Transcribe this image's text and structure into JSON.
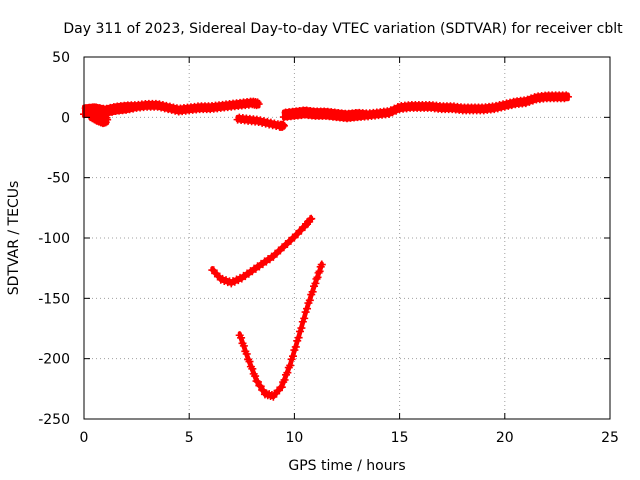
{
  "chart_data": {
    "type": "scatter",
    "title": "Day 311 of 2023, Sidereal Day-to-day VTEC variation (SDTVAR) for receiver cblt",
    "xlabel": "GPS time / hours",
    "ylabel": "SDTVAR / TECUs",
    "xlim": [
      0,
      25
    ],
    "ylim": [
      -250,
      50
    ],
    "xticks": [
      0,
      5,
      10,
      15,
      20,
      25
    ],
    "yticks": [
      50,
      0,
      -50,
      -100,
      -150,
      -200,
      -250
    ],
    "grid": true,
    "legend": "none",
    "color": "#ff0000",
    "marker": "plus",
    "series": [
      {
        "x": [
          0,
          0.5,
          1,
          1.5,
          2,
          2.5,
          3,
          3.5,
          4,
          4.5,
          5,
          5.5,
          6,
          6.5,
          7,
          7.5,
          8,
          8.3
        ],
        "y": [
          5,
          6,
          5,
          7,
          8,
          9,
          10,
          10,
          8,
          6,
          7,
          8,
          8,
          9,
          10,
          11,
          12,
          11
        ],
        "spread": [
          4,
          4,
          3,
          3,
          3,
          2,
          2,
          2,
          2,
          2,
          2,
          2,
          2,
          2,
          2,
          2,
          2,
          2
        ]
      },
      {
        "x": [
          0.3,
          0.6,
          0.9,
          1.1
        ],
        "y": [
          2,
          -1,
          -3,
          -2
        ],
        "spread": [
          3,
          3,
          3,
          3
        ]
      },
      {
        "x": [
          7.3,
          7.8,
          8.3,
          8.8,
          9.3,
          9.5
        ],
        "y": [
          -1,
          -2,
          -3,
          -5,
          -7,
          -7
        ],
        "spread": [
          1.5,
          1.5,
          1.5,
          1.5,
          1.5,
          1.5
        ]
      },
      {
        "x": [
          9.5,
          10,
          10.5,
          11,
          11.5,
          12,
          12.5,
          13,
          13.5,
          14,
          14.5,
          15,
          15.5,
          16,
          16.5,
          17,
          17.5,
          18,
          18.5,
          19,
          19.5,
          20,
          20.5,
          21,
          21.5,
          22,
          22.5,
          23
        ],
        "y": [
          2,
          3,
          4,
          3,
          3,
          2,
          1,
          2,
          2,
          3,
          4,
          8,
          9,
          9,
          9,
          8,
          8,
          7,
          7,
          7,
          8,
          10,
          12,
          13,
          16,
          17,
          17,
          17
        ],
        "spread": [
          3,
          3,
          3,
          3,
          3,
          3,
          3,
          3,
          2,
          2,
          2,
          2,
          2,
          2,
          2,
          2,
          2,
          2,
          2,
          2,
          2,
          2,
          2,
          2,
          2,
          2,
          2,
          2
        ]
      },
      {
        "x": [
          6.1,
          6.5,
          7,
          7.5,
          8,
          8.5,
          9,
          9.5,
          10,
          10.5,
          10.8
        ],
        "y": [
          -126,
          -134,
          -137,
          -133,
          -127,
          -121,
          -115,
          -107,
          -99,
          -90,
          -84
        ],
        "spread": [
          1,
          1,
          1,
          1,
          1,
          1,
          1,
          1,
          1,
          1,
          1
        ]
      },
      {
        "x": [
          7.4,
          7.8,
          8.2,
          8.6,
          9,
          9.4,
          9.8,
          10.2,
          10.6,
          11,
          11.3
        ],
        "y": [
          -180,
          -200,
          -218,
          -229,
          -231,
          -223,
          -205,
          -182,
          -158,
          -137,
          -122
        ],
        "spread": [
          1,
          1,
          1,
          1,
          1,
          1,
          1,
          1,
          1,
          1,
          1
        ]
      }
    ]
  }
}
